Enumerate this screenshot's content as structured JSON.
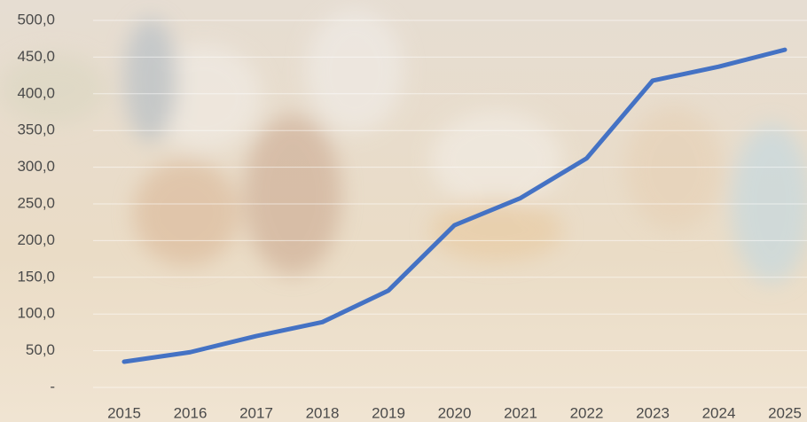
{
  "chart_data": {
    "type": "line",
    "categories": [
      "2015",
      "2016",
      "2017",
      "2018",
      "2019",
      "2020",
      "2021",
      "2022",
      "2023",
      "2024",
      "2025"
    ],
    "values": [
      35,
      48,
      70,
      89,
      132,
      221,
      258,
      312,
      418,
      437,
      460
    ],
    "color": "#4472c4",
    "ylim": [
      0,
      500
    ],
    "yticks": [
      {
        "value": 0,
        "label": "-"
      },
      {
        "value": 50,
        "label": "50,0"
      },
      {
        "value": 100,
        "label": "100,0"
      },
      {
        "value": 150,
        "label": "150,0"
      },
      {
        "value": 200,
        "label": "200,0"
      },
      {
        "value": 250,
        "label": "250,0"
      },
      {
        "value": 300,
        "label": "300,0"
      },
      {
        "value": 350,
        "label": "350,0"
      },
      {
        "value": 400,
        "label": "400,0"
      },
      {
        "value": 450,
        "label": "450,0"
      },
      {
        "value": 500,
        "label": "500,0"
      }
    ],
    "grid": true
  }
}
